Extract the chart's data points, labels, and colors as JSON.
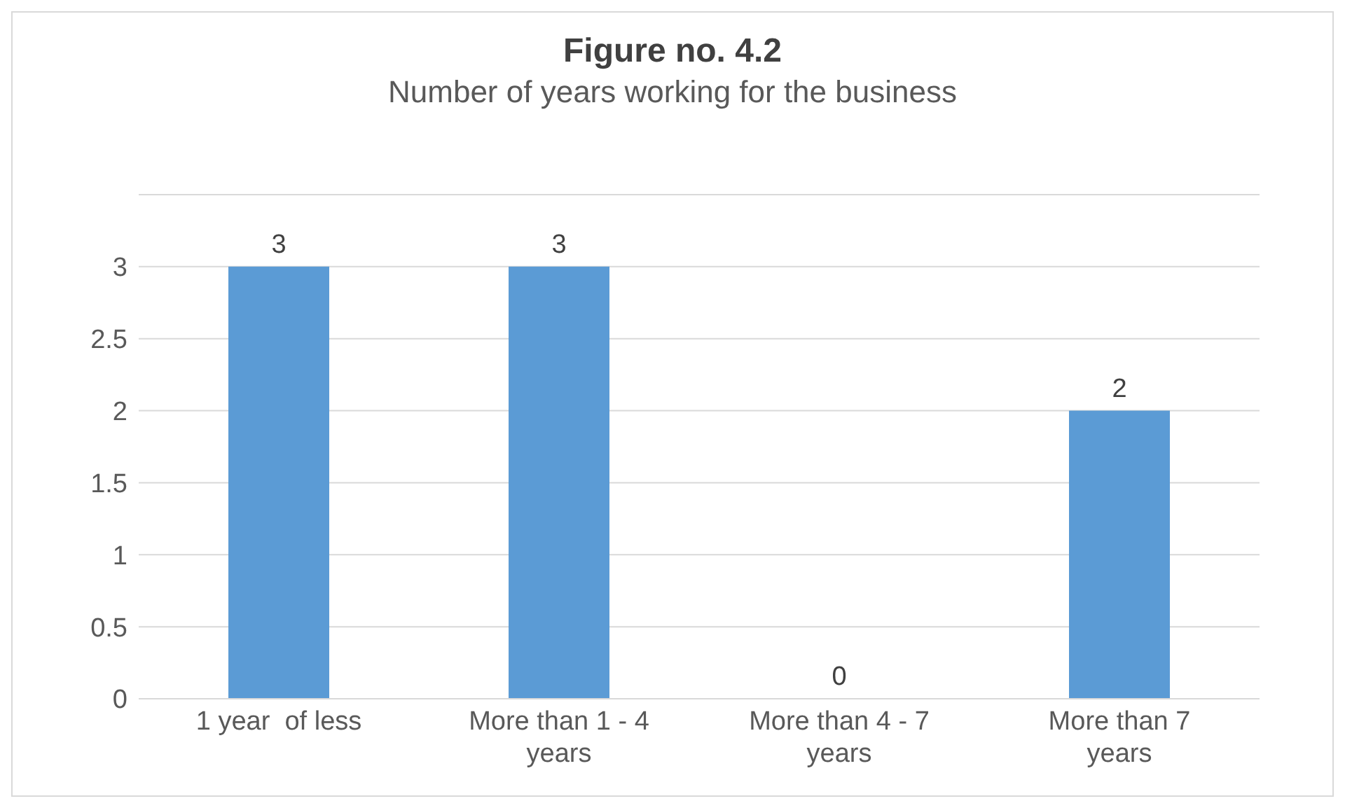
{
  "chart_data": {
    "type": "bar",
    "title": "Figure no. 4.2",
    "subtitle": "Number of years working for the business",
    "categories": [
      "1 year  of less",
      "More than 1 - 4 years",
      "More than 4 - 7 years",
      "More than 7 years"
    ],
    "values": [
      3,
      3,
      0,
      2
    ],
    "color": "#5b9bd5",
    "ylim": [
      0,
      3.5
    ],
    "yticks": [
      0,
      0.5,
      1,
      1.5,
      2,
      2.5,
      3,
      {
        "value": 3.5,
        "label": null
      }
    ],
    "grid": "y",
    "data_labels": true
  }
}
